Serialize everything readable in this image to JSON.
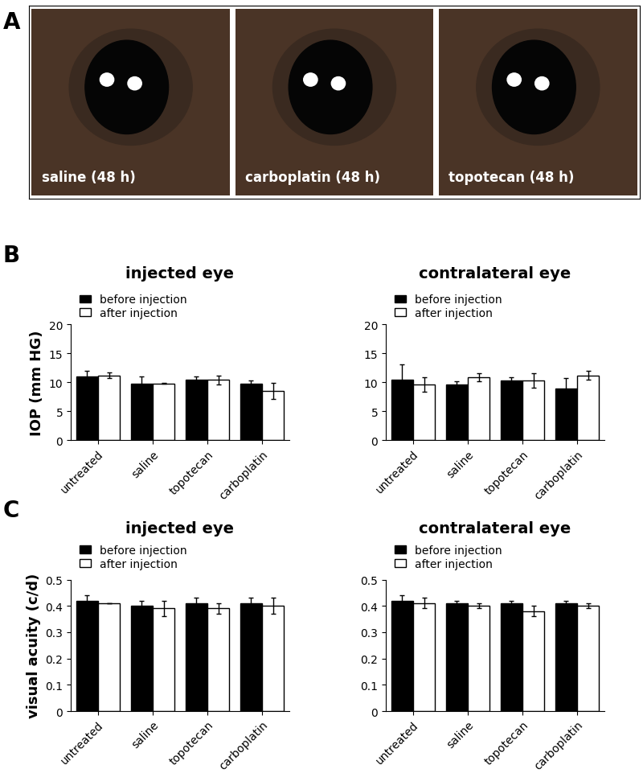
{
  "panel_labels": [
    "A",
    "B",
    "C"
  ],
  "photos": {
    "captions": [
      "saline (48 h)",
      "carboplatin (48 h)",
      "topotecan (48 h)"
    ]
  },
  "chart_data": [
    {
      "type": "bar",
      "panel": "B",
      "title": "injected eye",
      "y_label": "IOP (mm HG)",
      "categories": [
        "untreated",
        "saline",
        "topotecan",
        "carboplatin"
      ],
      "series": [
        {
          "name": "before injection",
          "color": "#000000",
          "values": [
            11.0,
            9.8,
            10.5,
            9.7
          ],
          "errors": [
            0.9,
            1.2,
            0.5,
            0.6
          ]
        },
        {
          "name": "after injection",
          "color": "#ffffff",
          "values": [
            11.2,
            9.8,
            10.4,
            8.5
          ],
          "errors": [
            0.5,
            0.1,
            0.8,
            1.4
          ]
        }
      ],
      "ylim": [
        0,
        20
      ],
      "yticks": [
        0,
        5,
        10,
        15,
        20
      ],
      "legend": "upper left"
    },
    {
      "type": "bar",
      "panel": "B",
      "title": "contralateral eye",
      "categories": [
        "untreated",
        "saline",
        "topotecan",
        "carboplatin"
      ],
      "series": [
        {
          "name": "before injection",
          "color": "#000000",
          "values": [
            10.4,
            9.6,
            10.3,
            8.9
          ],
          "errors": [
            2.7,
            0.6,
            0.6,
            1.8
          ]
        },
        {
          "name": "after injection",
          "color": "#ffffff",
          "values": [
            9.6,
            10.8,
            10.3,
            11.2
          ],
          "errors": [
            1.3,
            0.7,
            1.2,
            0.7
          ]
        }
      ],
      "ylim": [
        0,
        20
      ],
      "yticks": [
        0,
        5,
        10,
        15,
        20
      ],
      "legend": "upper left"
    },
    {
      "type": "bar",
      "panel": "C",
      "title": "injected eye",
      "y_label": "visual acuity (c/d)",
      "categories": [
        "untreated",
        "saline",
        "topotecan",
        "carboplatin"
      ],
      "series": [
        {
          "name": "before injection",
          "color": "#000000",
          "values": [
            0.42,
            0.4,
            0.41,
            0.41
          ],
          "errors": [
            0.02,
            0.02,
            0.02,
            0.02
          ]
        },
        {
          "name": "after injection",
          "color": "#ffffff",
          "values": [
            0.41,
            0.39,
            0.39,
            0.4
          ],
          "errors": [
            0.0,
            0.03,
            0.02,
            0.03
          ]
        }
      ],
      "ylim": [
        0,
        0.5
      ],
      "yticks": [
        0,
        0.1,
        0.2,
        0.3,
        0.4,
        0.5
      ],
      "legend": "upper left"
    },
    {
      "type": "bar",
      "panel": "C",
      "title": "contralateral eye",
      "categories": [
        "untreated",
        "saline",
        "topotecan",
        "carboplatin"
      ],
      "series": [
        {
          "name": "before injection",
          "color": "#000000",
          "values": [
            0.42,
            0.41,
            0.41,
            0.41
          ],
          "errors": [
            0.02,
            0.01,
            0.01,
            0.01
          ]
        },
        {
          "name": "after injection",
          "color": "#ffffff",
          "values": [
            0.41,
            0.4,
            0.38,
            0.4
          ],
          "errors": [
            0.02,
            0.01,
            0.02,
            0.01
          ]
        }
      ],
      "ylim": [
        0,
        0.5
      ],
      "yticks": [
        0,
        0.1,
        0.2,
        0.3,
        0.4,
        0.5
      ],
      "legend": "upper left"
    }
  ]
}
